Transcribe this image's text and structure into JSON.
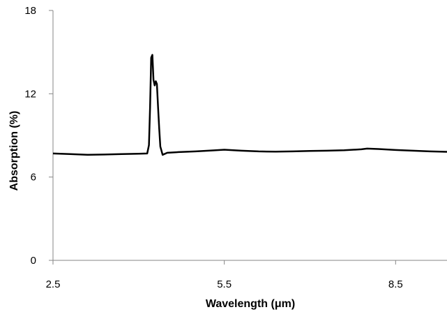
{
  "chart_data": {
    "type": "line",
    "title": "",
    "xlabel": "Wavelength (μm)",
    "ylabel": "Absorption (%)",
    "xlim": [
      2.5,
      9.4
    ],
    "ylim": [
      0,
      18
    ],
    "xticks": [
      2.5,
      5.5,
      8.5
    ],
    "xtick_labels": [
      "2.5",
      "5.5",
      "8.5"
    ],
    "yticks": [
      0,
      6,
      12,
      18
    ],
    "ytick_labels": [
      "0",
      "6",
      "12",
      "18"
    ],
    "grid": false,
    "legend": "none",
    "series": [
      {
        "color": "#000000",
        "x": [
          2.5,
          2.8,
          3.1,
          3.4,
          3.7,
          4.0,
          4.15,
          4.18,
          4.2,
          4.22,
          4.24,
          4.26,
          4.28,
          4.3,
          4.32,
          4.34,
          4.36,
          4.38,
          4.42,
          4.5,
          4.7,
          5.0,
          5.3,
          5.5,
          5.8,
          6.1,
          6.4,
          6.7,
          7.0,
          7.3,
          7.6,
          7.9,
          8.0,
          8.2,
          8.5,
          8.8,
          9.1,
          9.4
        ],
        "y": [
          7.7,
          7.65,
          7.6,
          7.62,
          7.65,
          7.68,
          7.7,
          8.3,
          11.0,
          14.6,
          14.8,
          13.0,
          12.6,
          12.9,
          12.7,
          11.0,
          9.5,
          8.2,
          7.6,
          7.75,
          7.8,
          7.85,
          7.92,
          7.97,
          7.9,
          7.85,
          7.83,
          7.85,
          7.88,
          7.9,
          7.93,
          8.0,
          8.05,
          8.02,
          7.95,
          7.9,
          7.85,
          7.82
        ]
      }
    ]
  }
}
